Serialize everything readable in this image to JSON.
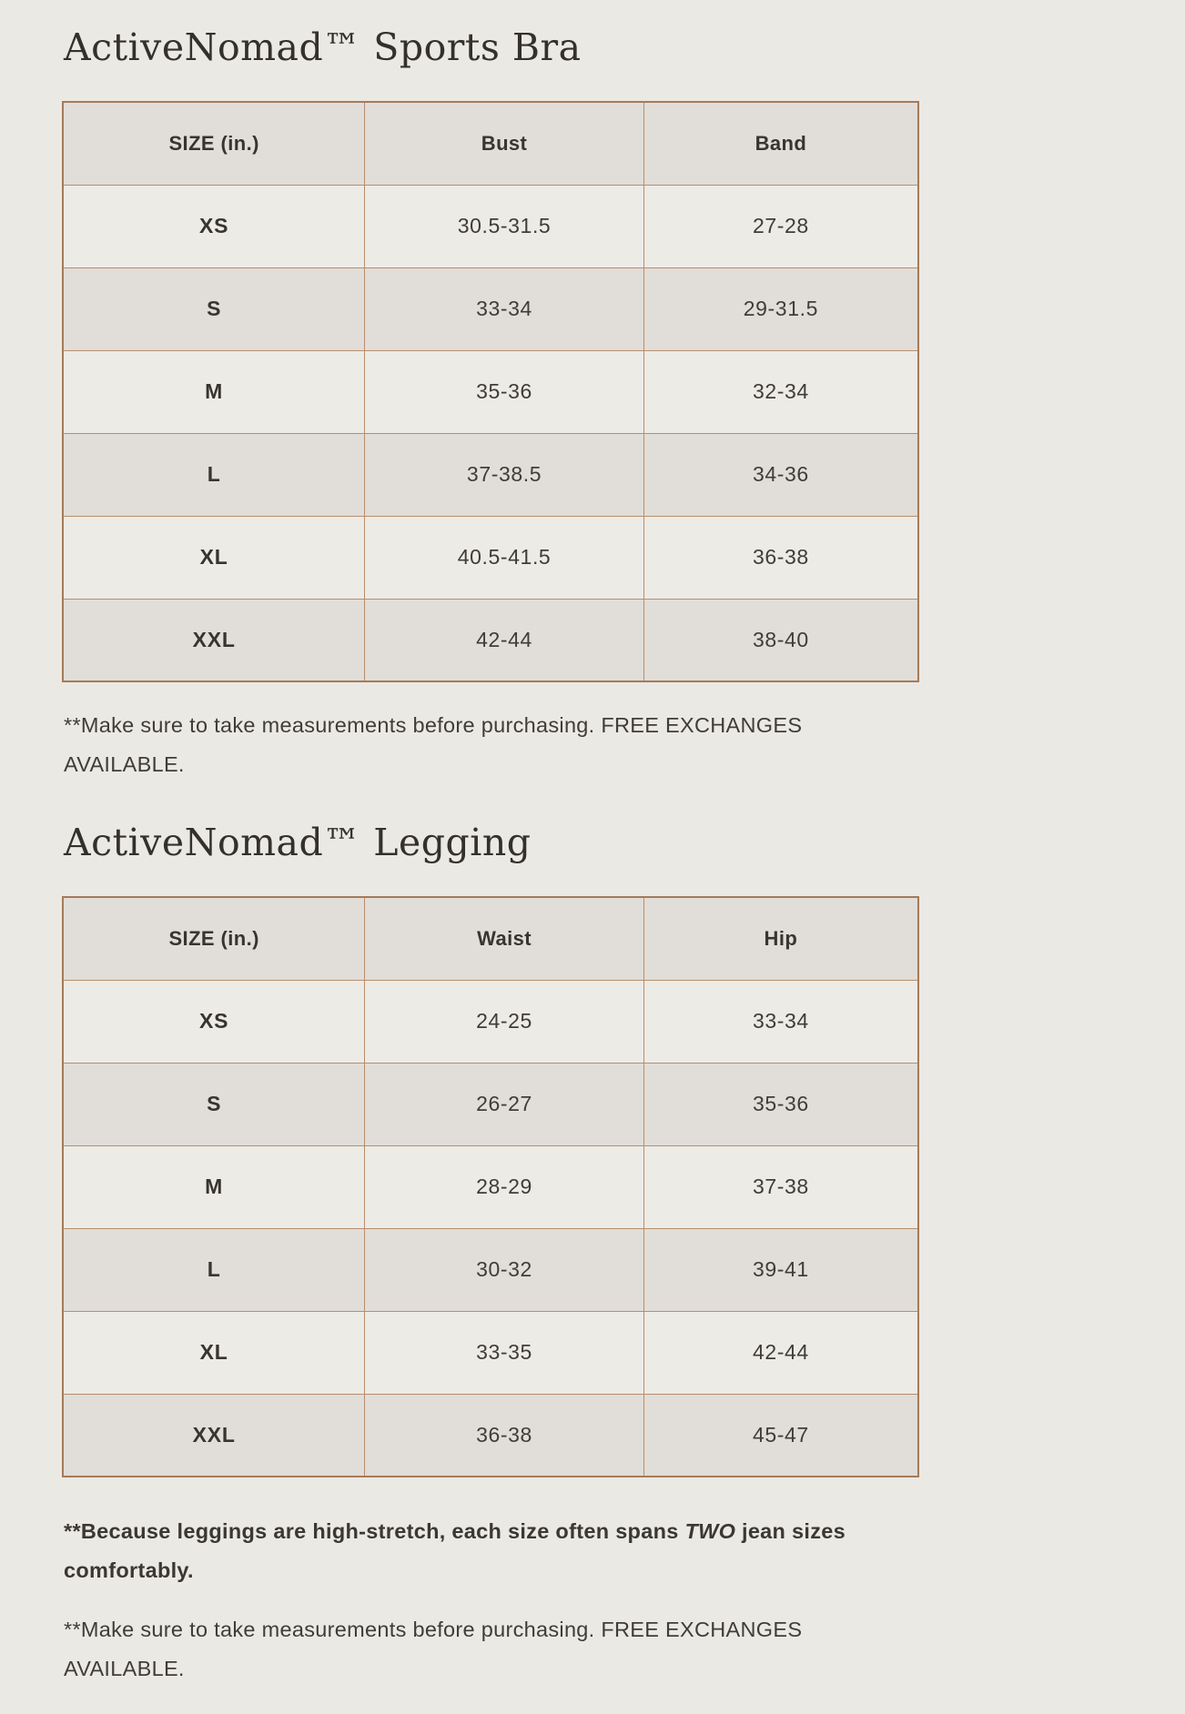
{
  "theme": {
    "page_bg": "#ebe9e4",
    "text": "#3b3733",
    "heading_text": "#33302d",
    "table_outer_border": "#a57b5a",
    "table_grid": "#b78e6d",
    "row_dark": "#e1ddd8",
    "row_light": "#edebe6"
  },
  "bra": {
    "title": "ActiveNomad™ Sports Bra",
    "headers": [
      "SIZE (in.)",
      "Bust",
      "Band"
    ],
    "rows": [
      [
        "XS",
        "30.5-31.5",
        "27-28"
      ],
      [
        "S",
        "33-34",
        "29-31.5"
      ],
      [
        "M",
        "35-36",
        "32-34"
      ],
      [
        "L",
        "37-38.5",
        "34-36"
      ],
      [
        "XL",
        "40.5-41.5",
        "36-38"
      ],
      [
        "XXL",
        "42-44",
        "38-40"
      ]
    ],
    "note_line1": "**Make sure to take measurements before purchasing. FREE EXCHANGES",
    "note_line2": "AVAILABLE."
  },
  "legging": {
    "title": "ActiveNomad™ Legging",
    "headers": [
      "SIZE (in.)",
      "Waist",
      "Hip"
    ],
    "rows": [
      [
        "XS",
        "24-25",
        "33-34"
      ],
      [
        "S",
        "26-27",
        "35-36"
      ],
      [
        "M",
        "28-29",
        "37-38"
      ],
      [
        "L",
        "30-32",
        "39-41"
      ],
      [
        "XL",
        "33-35",
        "42-44"
      ],
      [
        "XXL",
        "36-38",
        "45-47"
      ]
    ],
    "stretch_note": {
      "line1_prefix": "**Because leggings are high-stretch, each size often spans ",
      "line1_emphasis": "TWO",
      "line1_suffix": " jean sizes",
      "line2": "comfortably."
    },
    "note_line1": "**Make sure to take measurements before purchasing. FREE EXCHANGES",
    "note_line2": "AVAILABLE."
  }
}
